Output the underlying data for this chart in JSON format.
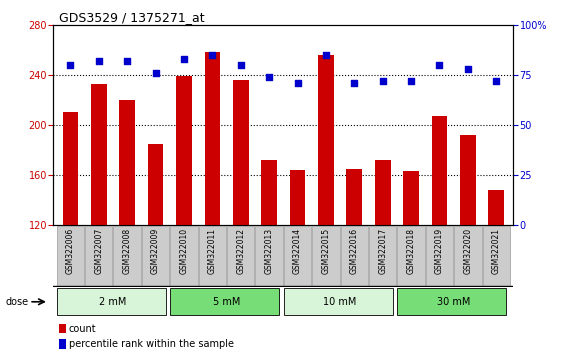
{
  "title": "GDS3529 / 1375271_at",
  "samples": [
    "GSM322006",
    "GSM322007",
    "GSM322008",
    "GSM322009",
    "GSM322010",
    "GSM322011",
    "GSM322012",
    "GSM322013",
    "GSM322014",
    "GSM322015",
    "GSM322016",
    "GSM322017",
    "GSM322018",
    "GSM322019",
    "GSM322020",
    "GSM322021"
  ],
  "counts": [
    210,
    233,
    220,
    185,
    239,
    258,
    236,
    172,
    164,
    256,
    165,
    172,
    163,
    207,
    192,
    148
  ],
  "percentiles": [
    80,
    82,
    82,
    76,
    83,
    85,
    80,
    74,
    71,
    85,
    71,
    72,
    72,
    80,
    78,
    72
  ],
  "ymin": 120,
  "ymax": 280,
  "y2min": 0,
  "y2max": 100,
  "yticks": [
    120,
    160,
    200,
    240,
    280
  ],
  "y2ticks": [
    0,
    25,
    50,
    75,
    100
  ],
  "groups": [
    {
      "label": "2 mM",
      "start": 0,
      "end": 4,
      "color": "#d9f5d9"
    },
    {
      "label": "5 mM",
      "start": 4,
      "end": 8,
      "color": "#77dd77"
    },
    {
      "label": "10 mM",
      "start": 8,
      "end": 12,
      "color": "#d9f5d9"
    },
    {
      "label": "30 mM",
      "start": 12,
      "end": 16,
      "color": "#77dd77"
    }
  ],
  "bar_color": "#cc0000",
  "dot_color": "#0000cc",
  "bar_width": 0.55,
  "bar_bottom": 120,
  "tick_area_color": "#cccccc",
  "tick_area_border": "#999999",
  "ylabel_left_color": "#cc0000",
  "ylabel_right_color": "#0000cc",
  "dose_label": "dose",
  "legend_count": "count",
  "legend_pct": "percentile rank within the sample"
}
